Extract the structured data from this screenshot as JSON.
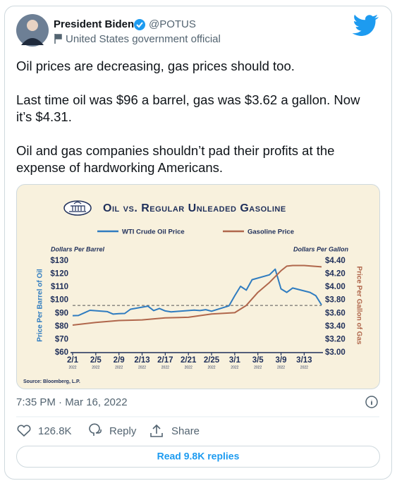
{
  "tweet": {
    "author": "President Biden",
    "handle": "@POTUS",
    "label": "United States government official",
    "paragraphs": [
      [
        "Oil prices are decreasing, gas prices should too."
      ],
      [
        "Last time oil was $96 a barrel, gas was $3.62 a gallon. Now",
        "it’s $4.31."
      ],
      [
        "Oil and gas companies shouldn’t pad their profits at the",
        "expense of hardworking Americans."
      ]
    ],
    "time": "7:35 PM · Mar 16, 2022",
    "likes": "126.8K",
    "reply": "Reply",
    "share": "Share",
    "read_replies": "Read 9.8K replies"
  },
  "chart_data": {
    "type": "line",
    "title": "Oil vs. Regular Unleaded Gasoline",
    "y_units": "Dollars Per Barrel",
    "y2_units": "Dollars Per Gallon",
    "ylabel": "Price Per Barrel of Oil",
    "y2label": "Price Per Gallon of Gas",
    "source": "Source: Bloomberg, L.P.",
    "reference_line": 96,
    "xlim": [
      "2022-02-01",
      "2022-03-16"
    ],
    "xticks": [
      {
        "value": "2022-02-01",
        "label": "2/1",
        "year": "2022"
      },
      {
        "value": "2022-02-05",
        "label": "2/5",
        "year": "2022"
      },
      {
        "value": "2022-02-09",
        "label": "2/9",
        "year": "2022"
      },
      {
        "value": "2022-02-13",
        "label": "2/13",
        "year": "2022"
      },
      {
        "value": "2022-02-17",
        "label": "2/17",
        "year": "2022"
      },
      {
        "value": "2022-02-21",
        "label": "2/21",
        "year": "2022"
      },
      {
        "value": "2022-02-25",
        "label": "2/25",
        "year": "2022"
      },
      {
        "value": "2022-03-01",
        "label": "3/1",
        "year": "2022"
      },
      {
        "value": "2022-03-05",
        "label": "3/5",
        "year": "2022"
      },
      {
        "value": "2022-03-09",
        "label": "3/9",
        "year": "2022"
      },
      {
        "value": "2022-03-13",
        "label": "3/13",
        "year": "2022"
      }
    ],
    "ylim": [
      60,
      130
    ],
    "yticks": [
      {
        "value": 60,
        "label": "$60"
      },
      {
        "value": 70,
        "label": "$70"
      },
      {
        "value": 80,
        "label": "$80"
      },
      {
        "value": 90,
        "label": "$90"
      },
      {
        "value": 100,
        "label": "$100"
      },
      {
        "value": 110,
        "label": "$110"
      },
      {
        "value": 120,
        "label": "$120"
      },
      {
        "value": 130,
        "label": "$130"
      }
    ],
    "y2lim": [
      3.0,
      4.4
    ],
    "y2ticks": [
      {
        "value": 3.0,
        "label": "$3.00"
      },
      {
        "value": 3.2,
        "label": "$3.20"
      },
      {
        "value": 3.4,
        "label": "$3.40"
      },
      {
        "value": 3.6,
        "label": "$3.60"
      },
      {
        "value": 3.8,
        "label": "$3.80"
      },
      {
        "value": 4.0,
        "label": "$4.00"
      },
      {
        "value": 4.2,
        "label": "$4.20"
      },
      {
        "value": 4.4,
        "label": "$4.40"
      }
    ],
    "series": [
      {
        "name": "WTI Crude Oil Price",
        "color": "#2f7cc0",
        "axis": "y",
        "x": [
          "2022-02-01",
          "2022-02-02",
          "2022-02-03",
          "2022-02-04",
          "2022-02-07",
          "2022-02-08",
          "2022-02-09",
          "2022-02-10",
          "2022-02-11",
          "2022-02-14",
          "2022-02-15",
          "2022-02-16",
          "2022-02-17",
          "2022-02-18",
          "2022-02-22",
          "2022-02-23",
          "2022-02-24",
          "2022-02-25",
          "2022-02-28",
          "2022-03-01",
          "2022-03-02",
          "2022-03-03",
          "2022-03-04",
          "2022-03-07",
          "2022-03-08",
          "2022-03-09",
          "2022-03-10",
          "2022-03-11",
          "2022-03-14",
          "2022-03-15",
          "2022-03-16"
        ],
        "values": [
          88.2,
          88.3,
          90.3,
          92.3,
          91.3,
          89.4,
          89.7,
          89.9,
          93.1,
          95.5,
          92.1,
          93.7,
          91.8,
          91.1,
          92.4,
          92.1,
          92.8,
          91.6,
          95.7,
          103.4,
          110.6,
          107.7,
          115.7,
          119.4,
          123.7,
          108.7,
          106.0,
          109.3,
          106.0,
          103.5,
          96.4
        ]
      },
      {
        "name": "Gasoline Price",
        "color": "#b0674c",
        "axis": "y2",
        "x": [
          "2022-02-01",
          "2022-02-05",
          "2022-02-09",
          "2022-02-13",
          "2022-02-17",
          "2022-02-21",
          "2022-02-25",
          "2022-03-01",
          "2022-03-03",
          "2022-03-05",
          "2022-03-07",
          "2022-03-09",
          "2022-03-10",
          "2022-03-11",
          "2022-03-13",
          "2022-03-16"
        ],
        "values": [
          3.42,
          3.46,
          3.49,
          3.5,
          3.53,
          3.54,
          3.59,
          3.61,
          3.72,
          3.92,
          4.07,
          4.25,
          4.32,
          4.33,
          4.33,
          4.31
        ]
      }
    ]
  }
}
